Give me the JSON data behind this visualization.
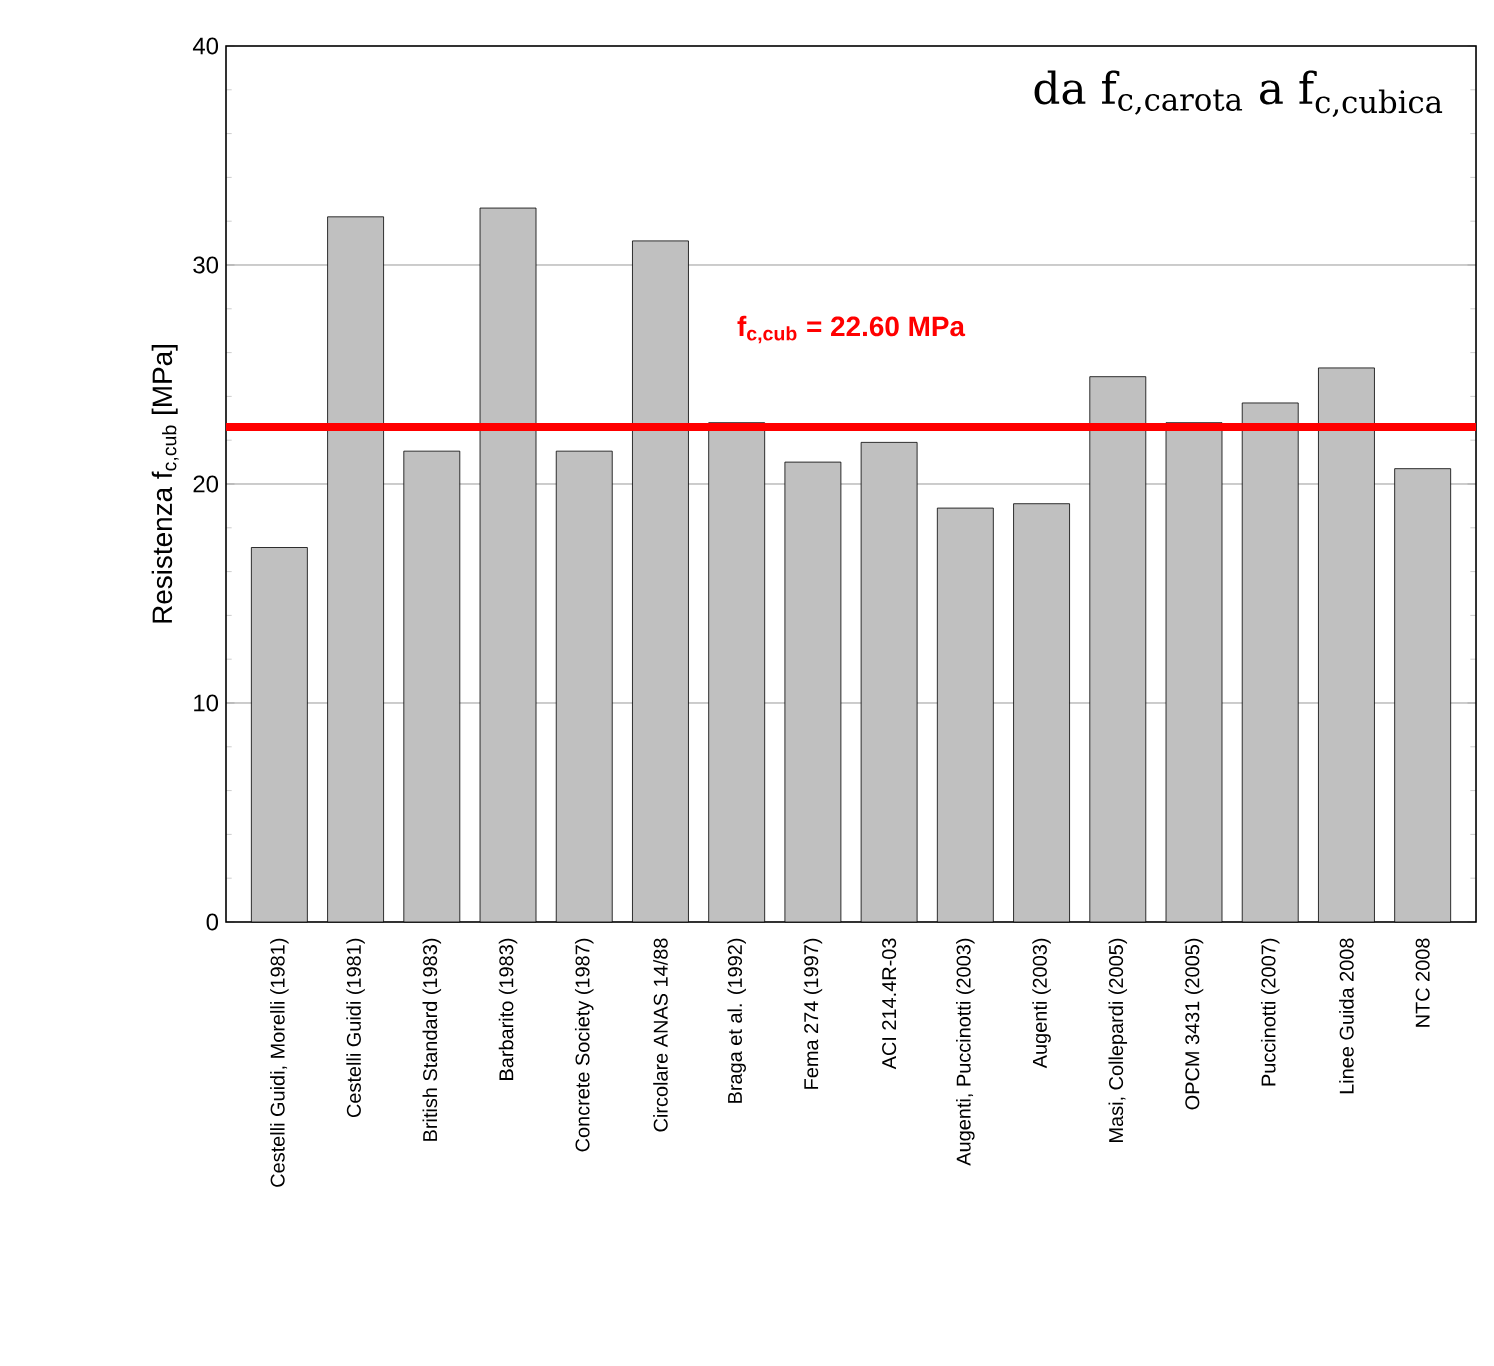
{
  "chart_data": {
    "type": "bar",
    "categories": [
      "Cestelli Guidi, Morelli (1981)",
      "Cestelli Guidi (1981)",
      "British Standard (1983)",
      "Barbarito (1983)",
      "Concrete Society (1987)",
      "Circolare ANAS 14/88",
      "Braga et al. (1992)",
      "Fema 274 (1997)",
      "ACI 214.4R-03",
      "Augenti, Puccinotti (2003)",
      "Augenti (2003)",
      "Masi, Collepardi (2005)",
      "OPCM 3431 (2005)",
      "Puccinotti (2007)",
      "Linee Guida 2008",
      "NTC 2008"
    ],
    "values": [
      17.1,
      32.2,
      21.5,
      32.6,
      21.5,
      31.1,
      22.8,
      21.0,
      21.9,
      18.9,
      19.1,
      24.9,
      22.8,
      23.7,
      25.3,
      20.7
    ],
    "color": "#c0c0c0",
    "ylabel": "Resistenza f$_{c,cub}$  [MPa]",
    "ylim": [
      0,
      40
    ],
    "yticks": [
      0,
      10,
      20,
      30,
      40
    ],
    "grid": "y",
    "ref_lines": [
      {
        "axis": "y",
        "value": 22.6,
        "label": "f$_{c,cub}$ = 22.60 MPa",
        "color": "#ff0000"
      }
    ],
    "annotations": [
      "da f$_{c,carota}$ a f$_{c,cubica}$"
    ]
  }
}
